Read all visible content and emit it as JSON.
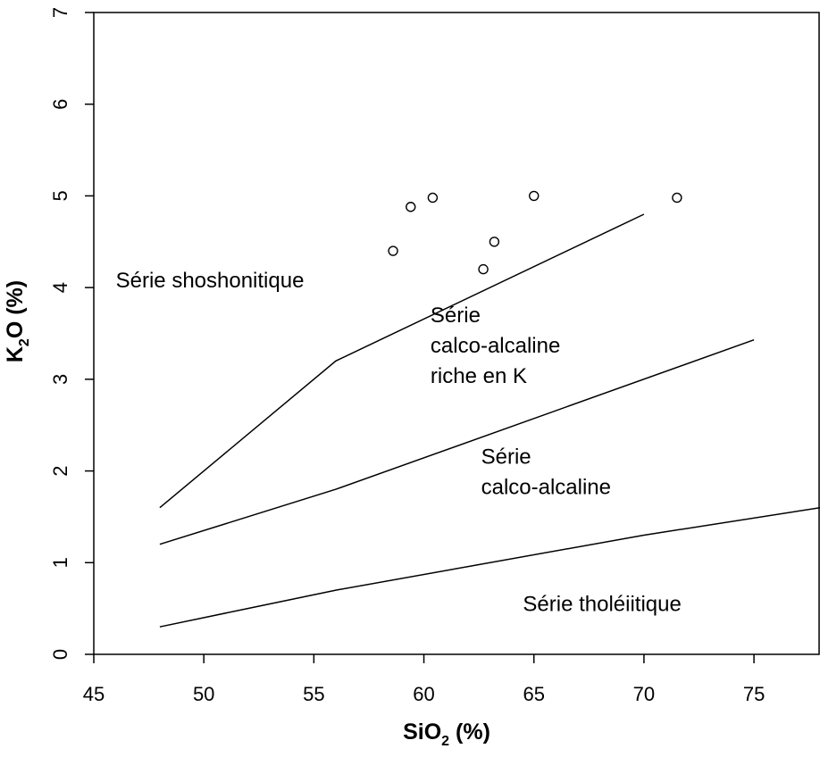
{
  "chart_data": {
    "type": "scatter",
    "title": "",
    "xlabel": {
      "main": "SiO",
      "sub": "2",
      "tail": " (%)"
    },
    "ylabel": {
      "main": "K",
      "sub": "2",
      "tail": "O (%)"
    },
    "xlim": [
      45,
      78
    ],
    "ylim": [
      0,
      7
    ],
    "x_ticks": [
      45,
      50,
      55,
      60,
      65,
      70,
      75
    ],
    "y_ticks": [
      0,
      1,
      2,
      3,
      4,
      5,
      6,
      7
    ],
    "grid": false,
    "points": [
      {
        "x": 58.6,
        "y": 4.4
      },
      {
        "x": 59.4,
        "y": 4.88
      },
      {
        "x": 60.4,
        "y": 4.98
      },
      {
        "x": 62.7,
        "y": 4.2
      },
      {
        "x": 63.2,
        "y": 4.5
      },
      {
        "x": 65.0,
        "y": 5.0
      },
      {
        "x": 71.5,
        "y": 4.98
      }
    ],
    "boundaries": [
      {
        "name": "shoshonitic-boundary",
        "points": [
          [
            48,
            1.6
          ],
          [
            56,
            3.2
          ],
          [
            70,
            4.8
          ]
        ]
      },
      {
        "name": "high-k-boundary",
        "points": [
          [
            48,
            1.2
          ],
          [
            56,
            1.8
          ],
          [
            75,
            3.43
          ]
        ]
      },
      {
        "name": "tholeiitic-boundary",
        "points": [
          [
            48,
            0.3
          ],
          [
            52,
            0.5
          ],
          [
            56,
            0.7
          ],
          [
            70,
            1.3
          ],
          [
            78,
            1.6
          ]
        ]
      }
    ],
    "annotations": [
      {
        "name": "label-shoshonitique",
        "lines": [
          "Série shoshonitique"
        ],
        "x": 46,
        "y": 4.0
      },
      {
        "name": "label-calco-alcaline-riche-k",
        "lines": [
          "Série",
          "calco-alcaline",
          "riche en K"
        ],
        "x": 60.3,
        "y": 3.62
      },
      {
        "name": "label-calco-alcaline",
        "lines": [
          "Série",
          "calco-alcaline"
        ],
        "x": 62.6,
        "y": 2.08
      },
      {
        "name": "label-tholeiitique",
        "lines": [
          "Série tholéiitique"
        ],
        "x": 64.5,
        "y": 0.47
      }
    ]
  }
}
